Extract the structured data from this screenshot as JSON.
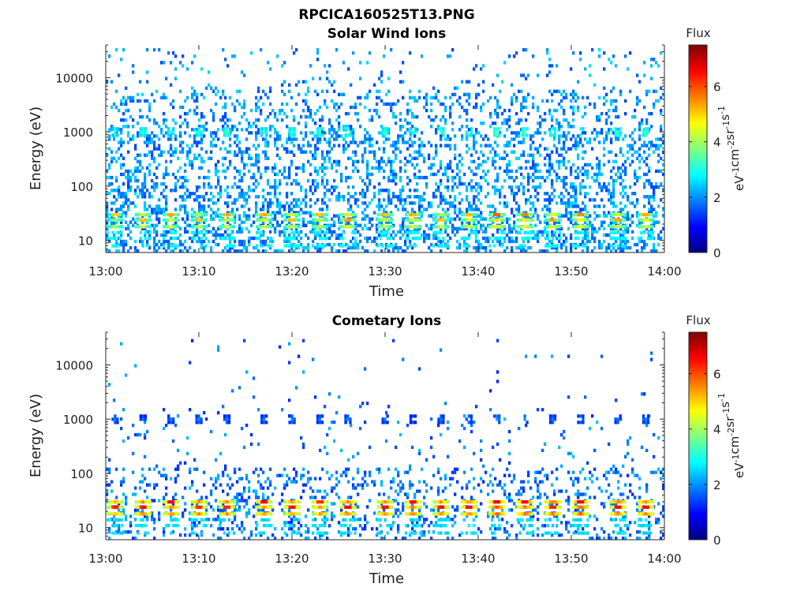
{
  "figure": {
    "title": "RPCICA160525T13.PNG"
  },
  "chart_data": [
    {
      "type": "heatmap",
      "title": "Solar Wind Ions",
      "xlabel": "Time",
      "ylabel": "Energy (eV)",
      "x_tick_labels": [
        "13:00",
        "13:10",
        "13:20",
        "13:30",
        "13:40",
        "13:50",
        "14:00"
      ],
      "y_tick_labels": [
        "10",
        "100",
        "1000",
        "10000"
      ],
      "xlim": [
        "13:00",
        "14:00"
      ],
      "ylim": [
        6,
        40000
      ],
      "y_scale": "log",
      "colorbar": {
        "label": "Flux",
        "unit": "eV-1cm-2sr-1s-1",
        "tick_labels": [
          "0",
          "2",
          "4",
          "6"
        ],
        "range": [
          0,
          7.5
        ],
        "colormap": "jet",
        "colors": [
          "#00007f",
          "#0000ff",
          "#007fff",
          "#00ffff",
          "#7fff7f",
          "#ffff00",
          "#ff7f00",
          "#ff0000",
          "#7f0000"
        ]
      },
      "band_energies": [
        18,
        24,
        30
      ],
      "burst_times": [
        "13:01",
        "13:04",
        "13:07",
        "13:10",
        "13:13",
        "13:17",
        "13:20",
        "13:23",
        "13:26",
        "13:30",
        "13:33",
        "13:36",
        "13:39",
        "13:42",
        "13:45",
        "13:48",
        "13:51",
        "13:55",
        "13:58"
      ],
      "burst_flux": [
        4.2,
        4.4,
        4.5,
        4.3,
        4.4,
        4.6,
        4.5,
        4.4,
        4.7,
        4.5,
        4.6,
        4.4,
        4.5,
        4.9,
        4.8,
        4.6,
        4.7,
        4.6,
        4.5
      ],
      "burst_peak_energy": [
        30,
        24,
        30,
        24,
        30,
        30,
        24,
        30,
        24,
        30,
        30,
        24,
        30,
        30,
        30,
        24,
        30,
        24,
        30
      ],
      "burst_peak_flux": [
        5.0,
        5.1,
        5.3,
        5.1,
        5.2,
        5.3,
        5.2,
        5.1,
        5.5,
        5.2,
        5.3,
        5.1,
        5.2,
        5.8,
        5.6,
        5.3,
        5.5,
        5.3,
        5.2
      ],
      "secondary_peak_energy": 1000,
      "secondary_peak_flux": [
        3.1,
        3.3,
        3.2,
        3.3,
        3.4,
        3.2,
        3.3,
        3.4,
        3.5,
        3.3,
        3.2,
        3.4,
        3.3,
        3.6,
        3.5,
        3.4,
        3.3,
        3.5,
        3.4
      ],
      "background_flux_range": [
        1.4,
        2.6
      ],
      "energy_range_sampled": [
        6,
        35000
      ],
      "grid": false
    },
    {
      "type": "heatmap",
      "title": "Cometary Ions",
      "xlabel": "Time",
      "ylabel": "Energy (eV)",
      "x_tick_labels": [
        "13:00",
        "13:10",
        "13:20",
        "13:30",
        "13:40",
        "13:50",
        "14:00"
      ],
      "y_tick_labels": [
        "10",
        "100",
        "1000",
        "10000"
      ],
      "xlim": [
        "13:00",
        "14:00"
      ],
      "ylim": [
        6,
        40000
      ],
      "y_scale": "log",
      "colorbar": {
        "label": "Flux",
        "unit": "eV-1cm-2sr-1s-1",
        "tick_labels": [
          "0",
          "2",
          "4",
          "6"
        ],
        "range": [
          0,
          7.5
        ],
        "colormap": "jet",
        "colors": [
          "#00007f",
          "#0000ff",
          "#007fff",
          "#00ffff",
          "#7fff7f",
          "#ffff00",
          "#ff7f00",
          "#ff0000",
          "#7f0000"
        ]
      },
      "band_energies": [
        18,
        24,
        30
      ],
      "burst_times": [
        "13:01",
        "13:04",
        "13:07",
        "13:10",
        "13:13",
        "13:17",
        "13:20",
        "13:23",
        "13:26",
        "13:30",
        "13:33",
        "13:36",
        "13:39",
        "13:42",
        "13:45",
        "13:48",
        "13:51",
        "13:55",
        "13:58"
      ],
      "burst_flux": [
        5.3,
        5.5,
        5.6,
        5.4,
        5.5,
        5.6,
        5.5,
        5.4,
        5.7,
        5.6,
        5.6,
        5.5,
        5.6,
        5.9,
        5.8,
        5.7,
        5.8,
        5.7,
        5.6
      ],
      "burst_peak_energy": [
        24,
        24,
        30,
        24,
        24,
        30,
        24,
        30,
        24,
        24,
        30,
        24,
        24,
        30,
        30,
        24,
        30,
        24,
        24
      ],
      "burst_peak_flux": [
        6.3,
        6.4,
        6.6,
        6.3,
        6.4,
        6.5,
        6.4,
        6.3,
        6.6,
        6.5,
        6.5,
        6.4,
        6.5,
        6.8,
        6.7,
        6.5,
        6.6,
        6.5,
        6.4
      ],
      "secondary_peak_energy": 1000,
      "secondary_peak_flux": [
        1.9,
        1.8,
        1.9,
        2.0,
        1.9,
        1.9,
        2.0,
        1.9,
        2.0,
        1.9,
        1.8,
        1.9,
        2.0,
        2.2,
        2.1,
        1.9,
        2.0,
        1.9,
        2.0
      ],
      "background_flux_range": [
        1.2,
        2.4
      ],
      "energy_range_sampled": [
        6,
        30000
      ],
      "grid": false
    }
  ]
}
